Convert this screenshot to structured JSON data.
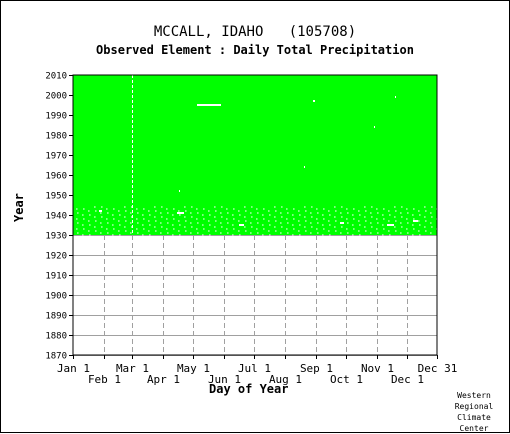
{
  "header": {
    "title": "MCCALL, IDAHO   (105708)",
    "subtitle": "Observed Element : Daily Total Precipitation"
  },
  "credit": {
    "lines": [
      "Western",
      "Regional",
      "Climate",
      "Center"
    ]
  },
  "chart_data": {
    "type": "heatmap",
    "title": "MCCALL, IDAHO   (105708)",
    "subtitle": "Observed Element : Daily Total Precipitation",
    "xlabel": "Day of Year",
    "ylabel": "Year",
    "xlim": [
      1,
      365
    ],
    "ylim": [
      1870,
      2010
    ],
    "x_ticks": [
      {
        "day": 1,
        "label": "Jan 1",
        "row": 1
      },
      {
        "day": 32,
        "label": "Feb 1",
        "row": 2
      },
      {
        "day": 60,
        "label": "Mar 1",
        "row": 1
      },
      {
        "day": 91,
        "label": "Apr 1",
        "row": 2
      },
      {
        "day": 121,
        "label": "May 1",
        "row": 1
      },
      {
        "day": 152,
        "label": "Jun 1",
        "row": 2
      },
      {
        "day": 182,
        "label": "Jul 1",
        "row": 1
      },
      {
        "day": 213,
        "label": "Aug 1",
        "row": 2
      },
      {
        "day": 244,
        "label": "Sep 1",
        "row": 1
      },
      {
        "day": 274,
        "label": "Oct 1",
        "row": 2
      },
      {
        "day": 305,
        "label": "Nov 1",
        "row": 1
      },
      {
        "day": 335,
        "label": "Dec 1",
        "row": 2
      },
      {
        "day": 365,
        "label": "Dec 31",
        "row": 1
      }
    ],
    "y_ticks": [
      1870,
      1880,
      1890,
      1900,
      1910,
      1920,
      1930,
      1940,
      1950,
      1960,
      1970,
      1980,
      1990,
      2000,
      2010
    ],
    "fill_color": "#00ff00",
    "data_coverage": {
      "start_year": 1930,
      "end_year": 2010,
      "start_day": 1,
      "end_day": 365
    },
    "missing_segments": [
      {
        "year": 1995,
        "start_day": 125,
        "end_day": 149
      },
      {
        "year": 1942,
        "start_day": 27,
        "end_day": 30
      },
      {
        "year": 1941,
        "start_day": 105,
        "end_day": 112
      },
      {
        "year": 1935,
        "start_day": 167,
        "end_day": 172
      },
      {
        "year": 1936,
        "start_day": 268,
        "end_day": 272
      },
      {
        "year": 1935,
        "start_day": 315,
        "end_day": 322
      },
      {
        "year": 1937,
        "start_day": 341,
        "end_day": 346
      },
      {
        "year": 1997,
        "start_day": 241,
        "end_day": 243
      },
      {
        "year": 1999,
        "start_day": 323,
        "end_day": 324
      },
      {
        "year": 1984,
        "start_day": 302,
        "end_day": 303
      },
      {
        "year": 1952,
        "start_day": 107,
        "end_day": 108
      },
      {
        "year": 1964,
        "start_day": 232,
        "end_day": 233
      }
    ],
    "missing_column_day": 60,
    "grid": true,
    "legend": "none"
  }
}
